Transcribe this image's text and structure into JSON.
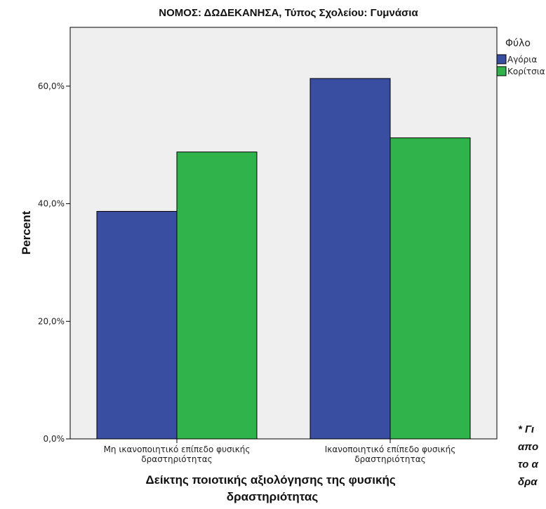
{
  "chart_data": {
    "type": "bar",
    "title": "ΝΟΜΟΣ: ΔΩΔΕΚΑΝΗΣΑ, Τύπος Σχολείου: Γυμνάσια",
    "xlabel": [
      "Δείκτης ποιοτικής αξιολόγησης της φυσικής",
      "δραστηριότητας"
    ],
    "ylabel": "Percent",
    "ylim": [
      0,
      70
    ],
    "yticks": [
      {
        "value": 0,
        "label": "0,0%"
      },
      {
        "value": 20,
        "label": "20,0%"
      },
      {
        "value": 40,
        "label": "40,0%"
      },
      {
        "value": 60,
        "label": "60,0%"
      }
    ],
    "categories": [
      {
        "lines": [
          "Μη ικανοποιητικό επίπεδο φυσικής",
          "δραστηριότητας"
        ]
      },
      {
        "lines": [
          "Ικανοποιητικό επίπεδο φυσικής",
          "δραστηριότητας"
        ]
      }
    ],
    "series": [
      {
        "name": "Αγόρια",
        "color": "#3a4ea1",
        "values": [
          38.7,
          61.3
        ]
      },
      {
        "name": "Κορίτσια",
        "color": "#2fb34a",
        "values": [
          48.8,
          51.2
        ]
      }
    ],
    "legend": {
      "title": "Φύλο",
      "placement": "top-right"
    },
    "plot_background": "#efefef",
    "grid": false
  },
  "note": [
    "* Γι",
    "απο",
    "το α",
    "δρα"
  ]
}
